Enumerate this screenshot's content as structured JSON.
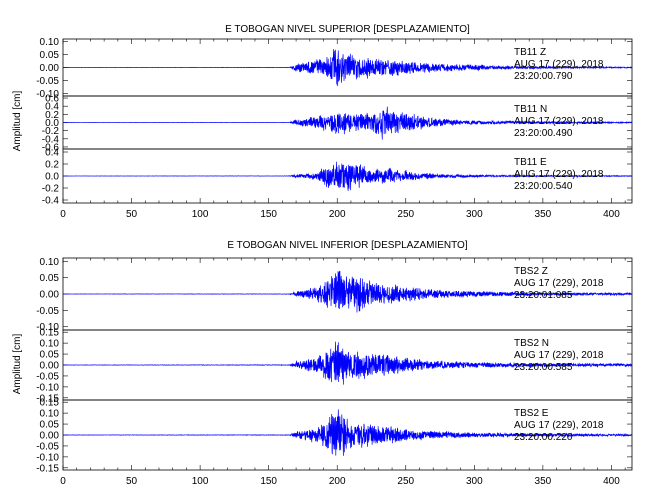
{
  "chart_data": [
    {
      "type": "line",
      "title": "E TOBOGAN NIVEL SUPERIOR [DESPLAZAMIENTO]",
      "ylabel": "Amplitud [cm]",
      "xlabel": "",
      "xlim": [
        0,
        415
      ],
      "xticks": [
        "0",
        "50",
        "100",
        "150",
        "200",
        "250",
        "300",
        "350",
        "400"
      ],
      "xtick_values": [
        0,
        50,
        100,
        150,
        200,
        250,
        300,
        350,
        400
      ],
      "panels": [
        {
          "name": "Z",
          "yticks": [
            "0.10",
            "0.05",
            "0.00",
            "-0.05",
            "-0.10"
          ],
          "ytick_values": [
            0.1,
            0.05,
            0.0,
            -0.05,
            -0.1
          ],
          "ylim": [
            -0.11,
            0.11
          ],
          "station": "TB11",
          "component": "Z",
          "date": "AUG 17 (229), 2018",
          "time": "23:20:00.790",
          "envelope": [
            [
              0,
              0.0005
            ],
            [
              165,
              0.001
            ],
            [
              170,
              0.02
            ],
            [
              180,
              0.035
            ],
            [
              190,
              0.05
            ],
            [
              197,
              0.09
            ],
            [
              200,
              0.11
            ],
            [
              205,
              0.08
            ],
            [
              215,
              0.06
            ],
            [
              230,
              0.05
            ],
            [
              240,
              0.045
            ],
            [
              260,
              0.03
            ],
            [
              280,
              0.02
            ],
            [
              300,
              0.015
            ],
            [
              320,
              0.01
            ],
            [
              350,
              0.006
            ],
            [
              380,
              0.004
            ],
            [
              415,
              0.003
            ]
          ]
        },
        {
          "name": "N",
          "yticks": [
            "0.6",
            "0.4",
            "0.2",
            "0.0",
            "-0.2",
            "-0.4",
            "-0.6"
          ],
          "ytick_values": [
            0.6,
            0.4,
            0.2,
            0.0,
            -0.2,
            -0.4,
            -0.6
          ],
          "ylim": [
            -0.65,
            0.65
          ],
          "station": "TB11",
          "component": "N",
          "date": "AUG 17 (229), 2018",
          "time": "23:20:00.490",
          "envelope": [
            [
              0,
              0.002
            ],
            [
              165,
              0.005
            ],
            [
              170,
              0.1
            ],
            [
              185,
              0.2
            ],
            [
              197,
              0.35
            ],
            [
              200,
              0.45
            ],
            [
              210,
              0.3
            ],
            [
              225,
              0.35
            ],
            [
              232,
              0.55
            ],
            [
              240,
              0.4
            ],
            [
              255,
              0.3
            ],
            [
              270,
              0.15
            ],
            [
              290,
              0.08
            ],
            [
              320,
              0.05
            ],
            [
              360,
              0.03
            ],
            [
              415,
              0.02
            ]
          ]
        },
        {
          "name": "E",
          "yticks": [
            "0.4",
            "0.2",
            "0.0",
            "-0.2",
            "-0.4"
          ],
          "ytick_values": [
            0.4,
            0.2,
            0.0,
            -0.2,
            -0.4
          ],
          "ylim": [
            -0.45,
            0.45
          ],
          "station": "TB11",
          "component": "E",
          "date": "AUG 17 (229), 2018",
          "time": "23:20:00.540",
          "envelope": [
            [
              0,
              0.002
            ],
            [
              165,
              0.004
            ],
            [
              170,
              0.04
            ],
            [
              185,
              0.08
            ],
            [
              195,
              0.3
            ],
            [
              205,
              0.38
            ],
            [
              215,
              0.3
            ],
            [
              225,
              0.15
            ],
            [
              235,
              0.2
            ],
            [
              245,
              0.15
            ],
            [
              260,
              0.08
            ],
            [
              280,
              0.04
            ],
            [
              320,
              0.02
            ],
            [
              415,
              0.01
            ]
          ]
        }
      ]
    },
    {
      "type": "line",
      "title": "E TOBOGAN NIVEL INFERIOR [DESPLAZAMIENTO]",
      "ylabel": "Amplitud [cm]",
      "xlabel": "",
      "xlim": [
        0,
        415
      ],
      "xticks": [
        "0",
        "50",
        "100",
        "150",
        "200",
        "250",
        "300",
        "350",
        "400"
      ],
      "xtick_values": [
        0,
        50,
        100,
        150,
        200,
        250,
        300,
        350,
        400
      ],
      "panels": [
        {
          "name": "Z",
          "yticks": [
            "0.10",
            "0.05",
            "0.00",
            "-0.05",
            "-0.10"
          ],
          "ytick_values": [
            0.1,
            0.05,
            0.0,
            -0.05,
            -0.1
          ],
          "ylim": [
            -0.11,
            0.11
          ],
          "station": "TBS2",
          "component": "Z",
          "date": "AUG 17 (229), 2018",
          "time": "23:20:01.085",
          "envelope": [
            [
              0,
              0.0005
            ],
            [
              165,
              0.001
            ],
            [
              170,
              0.01
            ],
            [
              185,
              0.03
            ],
            [
              195,
              0.07
            ],
            [
              200,
              0.12
            ],
            [
              210,
              0.06
            ],
            [
              215,
              0.09
            ],
            [
              225,
              0.05
            ],
            [
              240,
              0.04
            ],
            [
              260,
              0.025
            ],
            [
              280,
              0.015
            ],
            [
              320,
              0.01
            ],
            [
              360,
              0.006
            ],
            [
              415,
              0.004
            ]
          ]
        },
        {
          "name": "N",
          "yticks": [
            "0.15",
            "0.10",
            "0.05",
            "0.00",
            "-0.05",
            "-0.10",
            "-0.15"
          ],
          "ytick_values": [
            0.15,
            0.1,
            0.05,
            0.0,
            -0.05,
            -0.1,
            -0.15
          ],
          "ylim": [
            -0.16,
            0.16
          ],
          "station": "TBS2",
          "component": "N",
          "date": "AUG 17 (229), 2018",
          "time": "23:20:00.585",
          "envelope": [
            [
              0,
              0.001
            ],
            [
              165,
              0.002
            ],
            [
              170,
              0.02
            ],
            [
              185,
              0.05
            ],
            [
              195,
              0.12
            ],
            [
              200,
              0.15
            ],
            [
              210,
              0.1
            ],
            [
              220,
              0.09
            ],
            [
              235,
              0.07
            ],
            [
              250,
              0.05
            ],
            [
              265,
              0.03
            ],
            [
              290,
              0.02
            ],
            [
              330,
              0.012
            ],
            [
              415,
              0.008
            ]
          ]
        },
        {
          "name": "E",
          "yticks": [
            "0.15",
            "0.10",
            "0.05",
            "0.00",
            "-0.05",
            "-0.10",
            "-0.15"
          ],
          "ytick_values": [
            0.15,
            0.1,
            0.05,
            0.0,
            -0.05,
            -0.1,
            -0.15
          ],
          "ylim": [
            -0.16,
            0.16
          ],
          "station": "TBS2",
          "component": "E",
          "date": "AUG 17 (229), 2018",
          "time": "23:20:00.220",
          "envelope": [
            [
              0,
              0.001
            ],
            [
              165,
              0.002
            ],
            [
              170,
              0.02
            ],
            [
              185,
              0.05
            ],
            [
              195,
              0.12
            ],
            [
              200,
              0.16
            ],
            [
              210,
              0.1
            ],
            [
              220,
              0.08
            ],
            [
              235,
              0.06
            ],
            [
              250,
              0.04
            ],
            [
              270,
              0.025
            ],
            [
              300,
              0.015
            ],
            [
              340,
              0.01
            ],
            [
              415,
              0.006
            ]
          ]
        }
      ]
    }
  ],
  "colors": {
    "trace": "#0000ff",
    "axis": "#000000",
    "background": "#ffffff"
  }
}
